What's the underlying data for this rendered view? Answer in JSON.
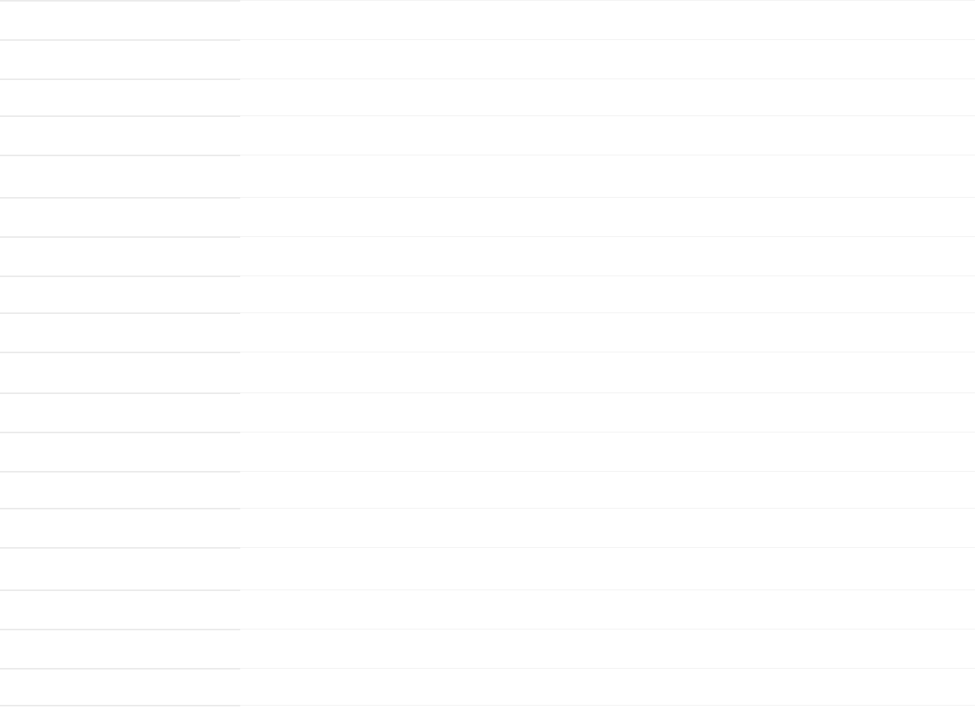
{
  "colors": {
    "background": "#ffffff",
    "left_divider": "#ebebeb",
    "right_divider": "#f2f2f2"
  }
}
